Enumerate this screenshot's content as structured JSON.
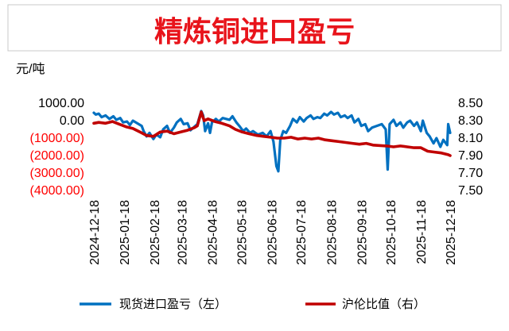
{
  "chart_data": {
    "type": "line",
    "title": "精炼铜进口盈亏",
    "ylabel": "元/吨",
    "title_color": "#e8141b",
    "grid": false,
    "legend_position": "bottom",
    "x_range": [
      "2024-12-18",
      "2025-12-18"
    ],
    "x_ticks": [
      "2024-12-18",
      "2025-01-18",
      "2025-02-18",
      "2025-03-18",
      "2025-04-18",
      "2025-05-18",
      "2025-06-18",
      "2025-07-18",
      "2025-08-18",
      "2025-09-18",
      "2025-10-18",
      "2025-11-18",
      "2025-12-18"
    ],
    "y_left": {
      "range": [
        -4000,
        1000
      ],
      "ticks": [
        1000,
        0,
        -1000,
        -2000,
        -3000,
        -4000
      ],
      "tick_labels": [
        "1000.00",
        "0.00",
        "(1000.00)",
        "(2000.00)",
        "(3000.00)",
        "(4000.00)"
      ],
      "positive_tick_color": "#000000",
      "negative_tick_color": "#ff0000"
    },
    "y_right": {
      "range": [
        7.5,
        8.5
      ],
      "ticks": [
        8.5,
        8.3,
        8.1,
        7.9,
        7.7,
        7.5
      ],
      "tick_labels": [
        "8.50",
        "8.30",
        "8.10",
        "7.90",
        "7.70",
        "7.50"
      ],
      "tick_color": "#000000"
    },
    "series": [
      {
        "name": "现货进口盈亏（左）",
        "axis": "left",
        "color": "#0070c0",
        "points": [
          [
            "2024-12-18",
            450
          ],
          [
            "2024-12-20",
            350
          ],
          [
            "2024-12-23",
            400
          ],
          [
            "2024-12-26",
            200
          ],
          [
            "2024-12-30",
            300
          ],
          [
            "2025-01-03",
            100
          ],
          [
            "2025-01-07",
            250
          ],
          [
            "2025-01-10",
            50
          ],
          [
            "2025-01-14",
            150
          ],
          [
            "2025-01-17",
            -100
          ],
          [
            "2025-01-21",
            -50
          ],
          [
            "2025-01-24",
            -250
          ],
          [
            "2025-01-27",
            0
          ],
          [
            "2025-02-05",
            -300
          ],
          [
            "2025-02-07",
            -600
          ],
          [
            "2025-02-10",
            -900
          ],
          [
            "2025-02-13",
            -700
          ],
          [
            "2025-02-17",
            -1050
          ],
          [
            "2025-02-20",
            -800
          ],
          [
            "2025-02-24",
            -950
          ],
          [
            "2025-02-27",
            -500
          ],
          [
            "2025-03-03",
            -300
          ],
          [
            "2025-03-06",
            -700
          ],
          [
            "2025-03-10",
            -400
          ],
          [
            "2025-03-13",
            -100
          ],
          [
            "2025-03-17",
            100
          ],
          [
            "2025-03-20",
            -200
          ],
          [
            "2025-03-24",
            -150
          ],
          [
            "2025-03-27",
            -550
          ],
          [
            "2025-03-31",
            -350
          ],
          [
            "2025-04-03",
            -200
          ],
          [
            "2025-04-07",
            550
          ],
          [
            "2025-04-09",
            300
          ],
          [
            "2025-04-11",
            -600
          ],
          [
            "2025-04-14",
            -150
          ],
          [
            "2025-04-16",
            -700
          ],
          [
            "2025-04-18",
            -100
          ],
          [
            "2025-04-22",
            100
          ],
          [
            "2025-04-25",
            -50
          ],
          [
            "2025-04-29",
            150
          ],
          [
            "2025-05-06",
            50
          ],
          [
            "2025-05-09",
            250
          ],
          [
            "2025-05-13",
            -100
          ],
          [
            "2025-05-16",
            -300
          ],
          [
            "2025-05-20",
            -600
          ],
          [
            "2025-05-23",
            -450
          ],
          [
            "2025-05-27",
            -700
          ],
          [
            "2025-05-30",
            -600
          ],
          [
            "2025-06-04",
            -800
          ],
          [
            "2025-06-09",
            -700
          ],
          [
            "2025-06-13",
            -900
          ],
          [
            "2025-06-17",
            -600
          ],
          [
            "2025-06-20",
            -1200
          ],
          [
            "2025-06-23",
            -2600
          ],
          [
            "2025-06-25",
            -2900
          ],
          [
            "2025-06-27",
            -1100
          ],
          [
            "2025-06-30",
            -600
          ],
          [
            "2025-07-03",
            -700
          ],
          [
            "2025-07-07",
            -300
          ],
          [
            "2025-07-10",
            100
          ],
          [
            "2025-07-14",
            -100
          ],
          [
            "2025-07-17",
            200
          ],
          [
            "2025-07-21",
            -50
          ],
          [
            "2025-07-24",
            150
          ],
          [
            "2025-07-28",
            300
          ],
          [
            "2025-07-31",
            100
          ],
          [
            "2025-08-04",
            200
          ],
          [
            "2025-08-07",
            150
          ],
          [
            "2025-08-11",
            400
          ],
          [
            "2025-08-14",
            300
          ],
          [
            "2025-08-18",
            500
          ],
          [
            "2025-08-21",
            350
          ],
          [
            "2025-08-25",
            450
          ],
          [
            "2025-08-28",
            200
          ],
          [
            "2025-09-01",
            300
          ],
          [
            "2025-09-04",
            150
          ],
          [
            "2025-09-08",
            300
          ],
          [
            "2025-09-11",
            -100
          ],
          [
            "2025-09-15",
            100
          ],
          [
            "2025-09-18",
            -300
          ],
          [
            "2025-09-22",
            -200
          ],
          [
            "2025-09-25",
            -600
          ],
          [
            "2025-09-29",
            -400
          ],
          [
            "2025-10-09",
            -200
          ],
          [
            "2025-10-13",
            -500
          ],
          [
            "2025-10-15",
            -2800
          ],
          [
            "2025-10-17",
            -200
          ],
          [
            "2025-10-21",
            50
          ],
          [
            "2025-10-24",
            -300
          ],
          [
            "2025-10-28",
            -100
          ],
          [
            "2025-10-31",
            -400
          ],
          [
            "2025-11-04",
            -100
          ],
          [
            "2025-11-07",
            0
          ],
          [
            "2025-11-11",
            -300
          ],
          [
            "2025-11-14",
            -100
          ],
          [
            "2025-11-18",
            -600
          ],
          [
            "2025-11-20",
            0
          ],
          [
            "2025-11-24",
            -700
          ],
          [
            "2025-11-27",
            -900
          ],
          [
            "2025-12-01",
            -1300
          ],
          [
            "2025-12-04",
            -1000
          ],
          [
            "2025-12-08",
            -1500
          ],
          [
            "2025-12-11",
            -1100
          ],
          [
            "2025-12-15",
            -1400
          ],
          [
            "2025-12-16",
            -200
          ],
          [
            "2025-12-18",
            -700
          ]
        ]
      },
      {
        "name": "沪伦比值（右）",
        "axis": "right",
        "color": "#c00000",
        "points": [
          [
            "2024-12-18",
            8.27
          ],
          [
            "2024-12-23",
            8.28
          ],
          [
            "2024-12-30",
            8.27
          ],
          [
            "2025-01-06",
            8.29
          ],
          [
            "2025-01-13",
            8.26
          ],
          [
            "2025-01-20",
            8.23
          ],
          [
            "2025-01-27",
            8.21
          ],
          [
            "2025-02-05",
            8.16
          ],
          [
            "2025-02-10",
            8.13
          ],
          [
            "2025-02-17",
            8.12
          ],
          [
            "2025-02-24",
            8.17
          ],
          [
            "2025-03-03",
            8.18
          ],
          [
            "2025-03-10",
            8.15
          ],
          [
            "2025-03-17",
            8.17
          ],
          [
            "2025-03-24",
            8.19
          ],
          [
            "2025-03-31",
            8.22
          ],
          [
            "2025-04-03",
            8.24
          ],
          [
            "2025-04-07",
            8.4
          ],
          [
            "2025-04-10",
            8.3
          ],
          [
            "2025-04-14",
            8.32
          ],
          [
            "2025-04-21",
            8.29
          ],
          [
            "2025-04-28",
            8.27
          ],
          [
            "2025-05-06",
            8.24
          ],
          [
            "2025-05-12",
            8.2
          ],
          [
            "2025-05-19",
            8.17
          ],
          [
            "2025-05-26",
            8.15
          ],
          [
            "2025-06-03",
            8.13
          ],
          [
            "2025-06-10",
            8.12
          ],
          [
            "2025-06-17",
            8.11
          ],
          [
            "2025-06-24",
            8.1
          ],
          [
            "2025-07-01",
            8.1
          ],
          [
            "2025-07-08",
            8.11
          ],
          [
            "2025-07-15",
            8.09
          ],
          [
            "2025-07-22",
            8.1
          ],
          [
            "2025-07-29",
            8.09
          ],
          [
            "2025-08-05",
            8.1
          ],
          [
            "2025-08-12",
            8.08
          ],
          [
            "2025-08-19",
            8.07
          ],
          [
            "2025-08-26",
            8.06
          ],
          [
            "2025-09-02",
            8.05
          ],
          [
            "2025-09-09",
            8.04
          ],
          [
            "2025-09-16",
            8.03
          ],
          [
            "2025-09-23",
            8.04
          ],
          [
            "2025-09-30",
            8.02
          ],
          [
            "2025-10-14",
            8.01
          ],
          [
            "2025-10-21",
            8.0
          ],
          [
            "2025-10-28",
            8.01
          ],
          [
            "2025-11-04",
            8.0
          ],
          [
            "2025-11-11",
            7.99
          ],
          [
            "2025-11-18",
            7.99
          ],
          [
            "2025-11-25",
            7.95
          ],
          [
            "2025-12-02",
            7.94
          ],
          [
            "2025-12-09",
            7.93
          ],
          [
            "2025-12-16",
            7.91
          ],
          [
            "2025-12-18",
            7.9
          ]
        ]
      }
    ]
  }
}
